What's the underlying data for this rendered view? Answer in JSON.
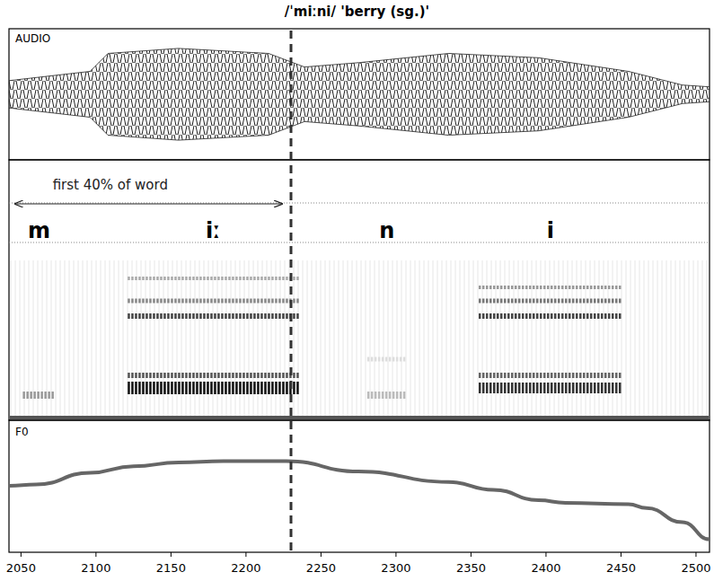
{
  "chart_data": {
    "type": "line",
    "title": "/ˈmiːni/ 'berry (sg.)'",
    "xlim": [
      2042,
      2509
    ],
    "xticks": [
      2050,
      2100,
      2150,
      2200,
      2250,
      2300,
      2350,
      2400,
      2450,
      2500
    ],
    "ylim": [
      0,
      100
    ],
    "tick_labels": "x",
    "grid": false,
    "series": [
      {
        "name": "AUDIO",
        "color": "#222222",
        "x": [
          2042,
          2096,
          2108,
          2155,
          2215,
          2239,
          2275,
          2335,
          2395,
          2455,
          2491,
          2509
        ],
        "values": [
          22,
          37,
          66,
          74,
          66,
          44,
          51,
          66,
          59,
          37,
          15,
          12
        ]
      },
      {
        "name": "F0",
        "color": "#666666",
        "x": [
          2042,
          2060,
          2096,
          2125,
          2155,
          2185,
          2227,
          2275,
          2335,
          2365,
          2395,
          2413,
          2455,
          2467,
          2491,
          2509
        ],
        "values": [
          51,
          52,
          61,
          66,
          69,
          70,
          70,
          62,
          54,
          48,
          40,
          38,
          37,
          34,
          23,
          10
        ]
      }
    ],
    "segments": [
      {
        "label": "m",
        "x": 2062
      },
      {
        "label": "iː",
        "x": 2178
      },
      {
        "label": "n",
        "x": 2294
      },
      {
        "label": "i",
        "x": 2403
      }
    ],
    "annotations": [
      {
        "text": "first 40% of word",
        "x": [
          2046,
          2224
        ]
      }
    ],
    "vline": 2230
  }
}
